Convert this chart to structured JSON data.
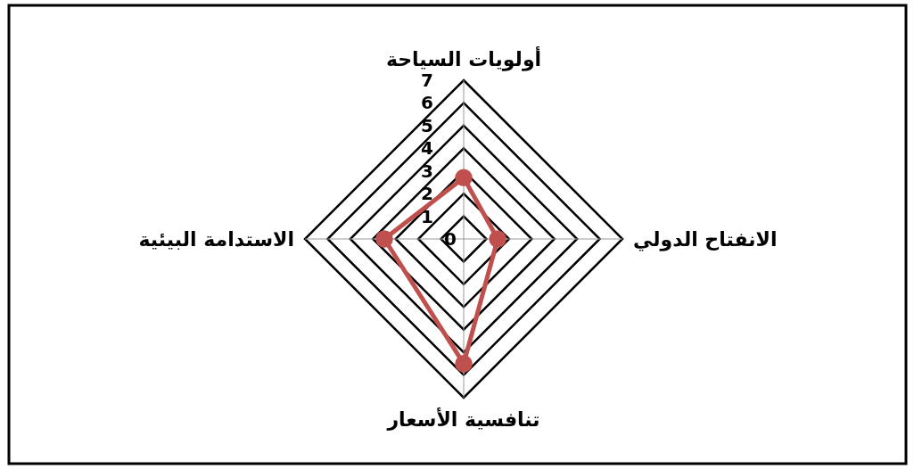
{
  "chart_data": {
    "type": "radar",
    "categories": [
      "أولويات السياحة",
      "الانفتاح الدولي",
      "تنافسية الأسعار",
      "الاستدامة البيئية"
    ],
    "series": [
      {
        "color": "#c0504d",
        "values": [
          2.7,
          1.5,
          5.5,
          3.5
        ]
      }
    ],
    "ylim": [
      0,
      7
    ],
    "yticks": [
      0,
      1,
      2,
      3,
      4,
      5,
      6,
      7
    ],
    "marker": "circle",
    "legend": false,
    "grid": true
  }
}
